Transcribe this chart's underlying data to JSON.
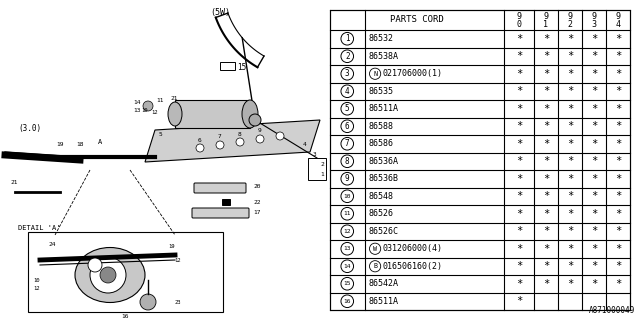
{
  "footer_text": "A871000049",
  "table_header_parts": "PARTS CORD",
  "table_col_headers": [
    "9\n0",
    "9\n1",
    "9\n2",
    "9\n3",
    "9\n4"
  ],
  "table_rows": [
    {
      "num": "1",
      "prefix": "",
      "code": "86532",
      "stars": [
        true,
        true,
        true,
        true,
        true
      ]
    },
    {
      "num": "2",
      "prefix": "",
      "code": "86538A",
      "stars": [
        true,
        true,
        true,
        true,
        true
      ]
    },
    {
      "num": "3",
      "prefix": "N",
      "code": "021706000(1)",
      "stars": [
        true,
        true,
        true,
        true,
        true
      ]
    },
    {
      "num": "4",
      "prefix": "",
      "code": "86535",
      "stars": [
        true,
        true,
        true,
        true,
        true
      ]
    },
    {
      "num": "5",
      "prefix": "",
      "code": "86511A",
      "stars": [
        true,
        true,
        true,
        true,
        true
      ]
    },
    {
      "num": "6",
      "prefix": "",
      "code": "86588",
      "stars": [
        true,
        true,
        true,
        true,
        true
      ]
    },
    {
      "num": "7",
      "prefix": "",
      "code": "86586",
      "stars": [
        true,
        true,
        true,
        true,
        true
      ]
    },
    {
      "num": "8",
      "prefix": "",
      "code": "86536A",
      "stars": [
        true,
        true,
        true,
        true,
        true
      ]
    },
    {
      "num": "9",
      "prefix": "",
      "code": "86536B",
      "stars": [
        true,
        true,
        true,
        true,
        true
      ]
    },
    {
      "num": "10",
      "prefix": "",
      "code": "86548",
      "stars": [
        true,
        true,
        true,
        true,
        true
      ]
    },
    {
      "num": "11",
      "prefix": "",
      "code": "86526",
      "stars": [
        true,
        true,
        true,
        true,
        true
      ]
    },
    {
      "num": "12",
      "prefix": "",
      "code": "86526C",
      "stars": [
        true,
        true,
        true,
        true,
        true
      ]
    },
    {
      "num": "13",
      "prefix": "W",
      "code": "031206000(4)",
      "stars": [
        true,
        true,
        true,
        true,
        true
      ]
    },
    {
      "num": "14",
      "prefix": "B",
      "code": "016506160(2)",
      "stars": [
        true,
        true,
        true,
        true,
        true
      ]
    },
    {
      "num": "15",
      "prefix": "",
      "code": "86542A",
      "stars": [
        true,
        true,
        true,
        true,
        true
      ]
    },
    {
      "num": "16",
      "prefix": "",
      "code": "86511A",
      "stars": [
        true,
        false,
        false,
        false,
        false
      ]
    }
  ],
  "bg_color": "#ffffff",
  "text_color": "#000000"
}
